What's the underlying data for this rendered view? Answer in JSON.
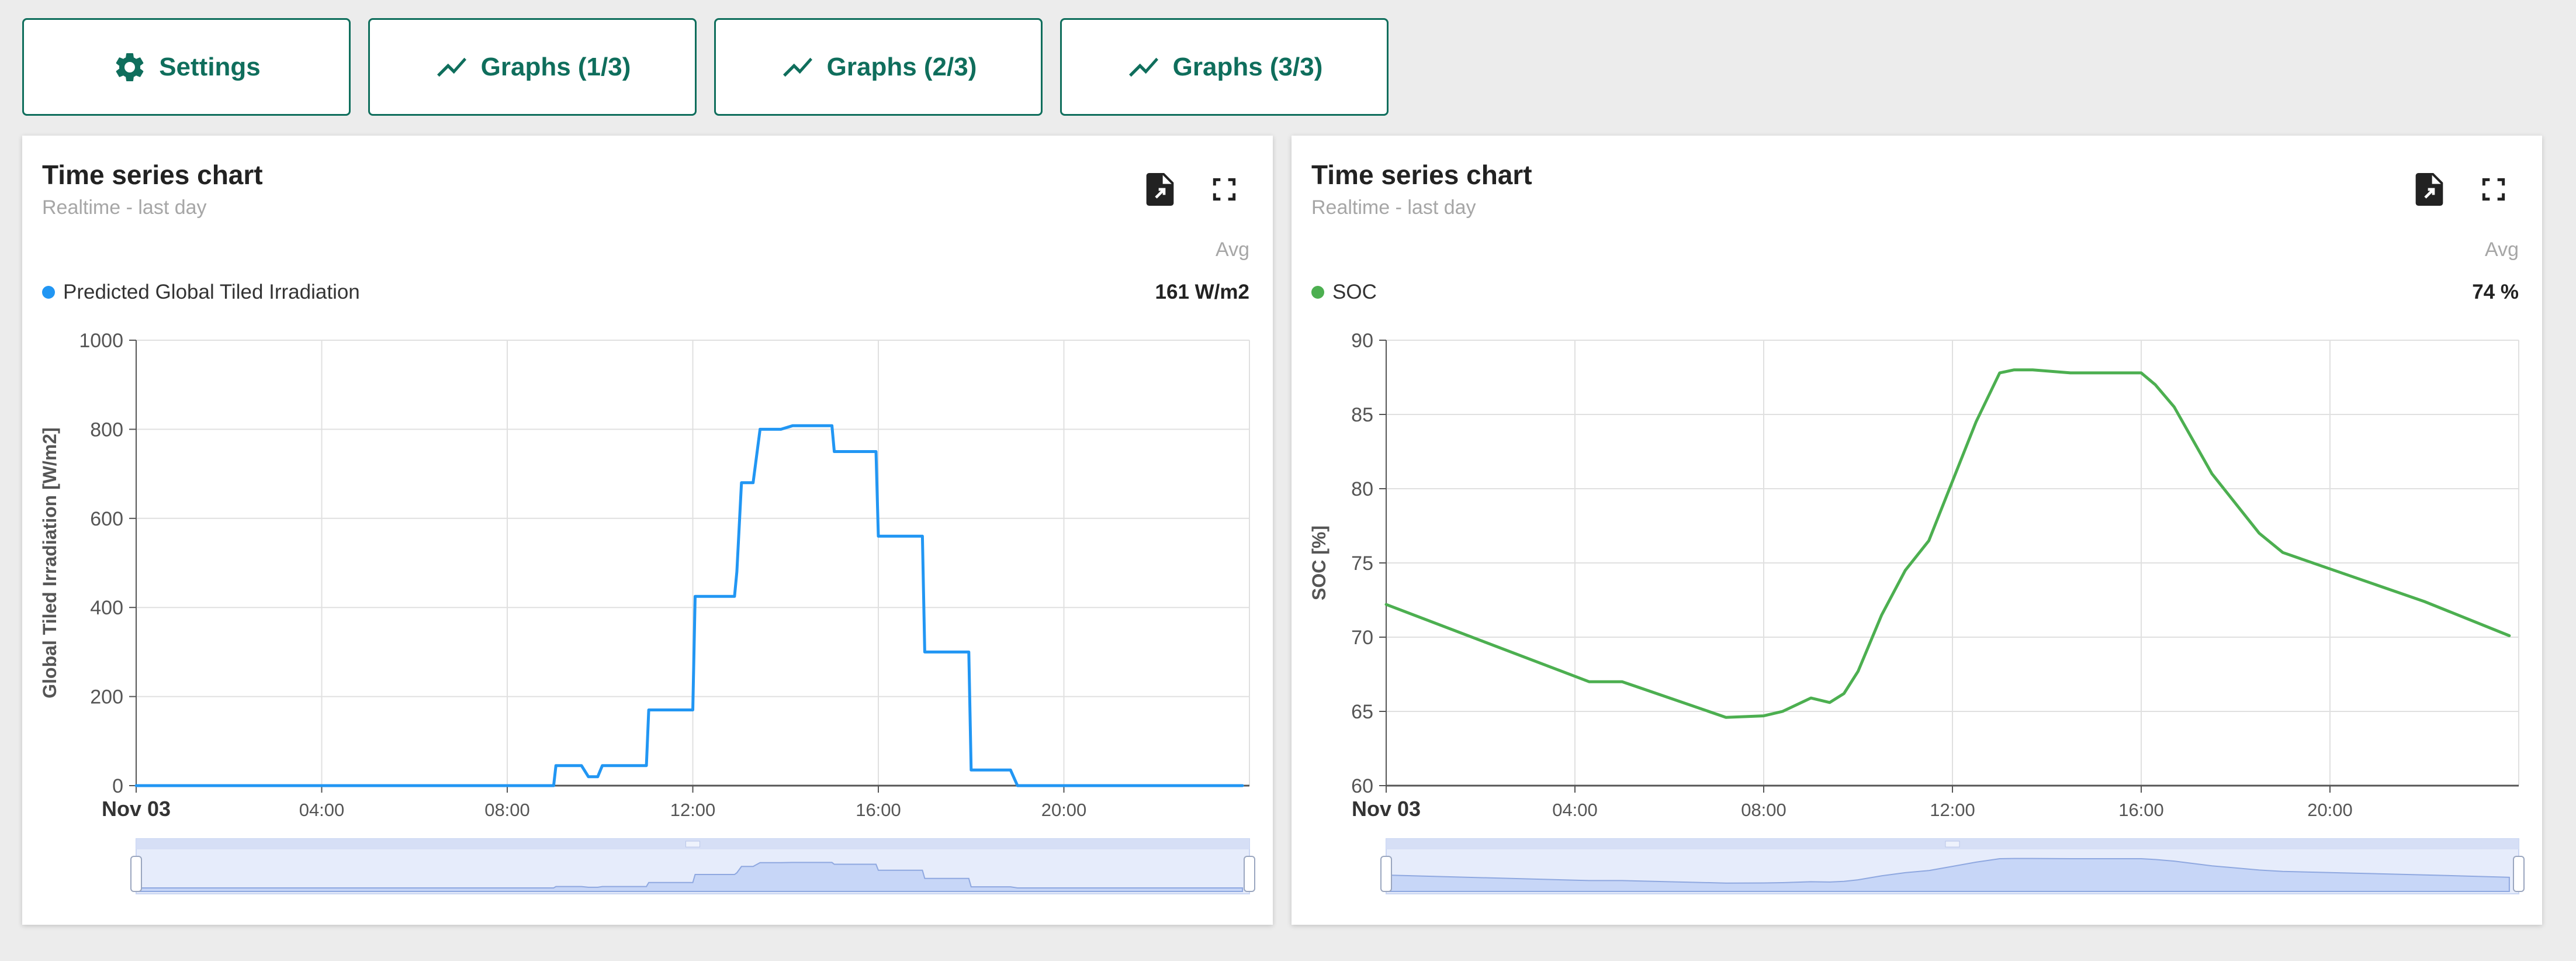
{
  "toolbar": {
    "buttons": [
      {
        "label": "Settings",
        "icon": "gear-icon"
      },
      {
        "label": "Graphs (1/3)",
        "icon": "trend-icon"
      },
      {
        "label": "Graphs (2/3)",
        "icon": "trend-icon"
      },
      {
        "label": "Graphs (3/3)",
        "icon": "trend-icon"
      }
    ],
    "accent_color": "#0f6e5c"
  },
  "panels": [
    {
      "title": "Time series chart",
      "subtitle": "Realtime - last day",
      "avg_header": "Avg",
      "legend_label": "Predicted Global Tiled Irradiation",
      "avg_value": "161 W/m2",
      "color": "#2196f3",
      "actions": [
        "export-file-icon",
        "fullscreen-icon"
      ]
    },
    {
      "title": "Time series chart",
      "subtitle": "Realtime - last day",
      "avg_header": "Avg",
      "legend_label": "SOC",
      "avg_value": "74 %",
      "color": "#4caf50",
      "actions": [
        "export-file-icon",
        "fullscreen-icon"
      ]
    }
  ],
  "chart_data": [
    {
      "type": "line",
      "title": "",
      "xlabel": "",
      "ylabel": "Global Tiled Irradiation [W/m2]",
      "xlim": [
        0,
        24
      ],
      "ylim": [
        0,
        1000
      ],
      "y_ticks": [
        0,
        200,
        400,
        600,
        800,
        1000
      ],
      "x_ticks": [
        {
          "v": 0,
          "label": "Nov 03"
        },
        {
          "v": 4,
          "label": "04:00"
        },
        {
          "v": 8,
          "label": "08:00"
        },
        {
          "v": 12,
          "label": "12:00"
        },
        {
          "v": 16,
          "label": "16:00"
        },
        {
          "v": 20,
          "label": "20:00"
        }
      ],
      "grid": true,
      "series": [
        {
          "name": "Predicted Global Tiled Irradiation",
          "color": "#2196f3",
          "x": [
            0,
            9,
            9.05,
            9.6,
            9.75,
            9.95,
            10.05,
            11,
            11.05,
            12,
            12.05,
            12.9,
            12.95,
            13.05,
            13.3,
            13.45,
            13.9,
            14.15,
            15,
            15.05,
            15.95,
            16,
            16.95,
            17,
            17.95,
            18,
            18.85,
            19,
            23.85
          ],
          "values": [
            0,
            0,
            45,
            45,
            20,
            20,
            45,
            45,
            170,
            170,
            425,
            425,
            480,
            680,
            680,
            800,
            800,
            808,
            808,
            750,
            750,
            560,
            560,
            300,
            300,
            35,
            35,
            0,
            0
          ]
        }
      ]
    },
    {
      "type": "line",
      "title": "",
      "xlabel": "",
      "ylabel": "SOC [%]",
      "xlim": [
        0,
        24
      ],
      "ylim": [
        60,
        90
      ],
      "y_ticks": [
        60,
        65,
        70,
        75,
        80,
        85,
        90
      ],
      "x_ticks": [
        {
          "v": 0,
          "label": "Nov 03"
        },
        {
          "v": 4,
          "label": "04:00"
        },
        {
          "v": 8,
          "label": "08:00"
        },
        {
          "v": 12,
          "label": "12:00"
        },
        {
          "v": 16,
          "label": "16:00"
        },
        {
          "v": 20,
          "label": "20:00"
        }
      ],
      "grid": true,
      "series": [
        {
          "name": "SOC",
          "color": "#4caf50",
          "x": [
            0,
            4.3,
            5,
            7.2,
            8,
            8.4,
            9,
            9.4,
            9.7,
            10,
            10.5,
            11,
            11.5,
            12,
            12.5,
            13,
            13.3,
            13.7,
            14.5,
            15,
            16,
            16.3,
            16.7,
            17.5,
            18.5,
            19,
            20,
            22,
            23.8
          ],
          "values": [
            72.2,
            67,
            67,
            64.6,
            64.7,
            65,
            65.9,
            65.6,
            66.2,
            67.7,
            71.5,
            74.5,
            76.5,
            80.5,
            84.5,
            87.8,
            88,
            88,
            87.8,
            87.8,
            87.8,
            87,
            85.5,
            81,
            77,
            75.7,
            74.6,
            72.4,
            70.1
          ]
        }
      ]
    }
  ]
}
